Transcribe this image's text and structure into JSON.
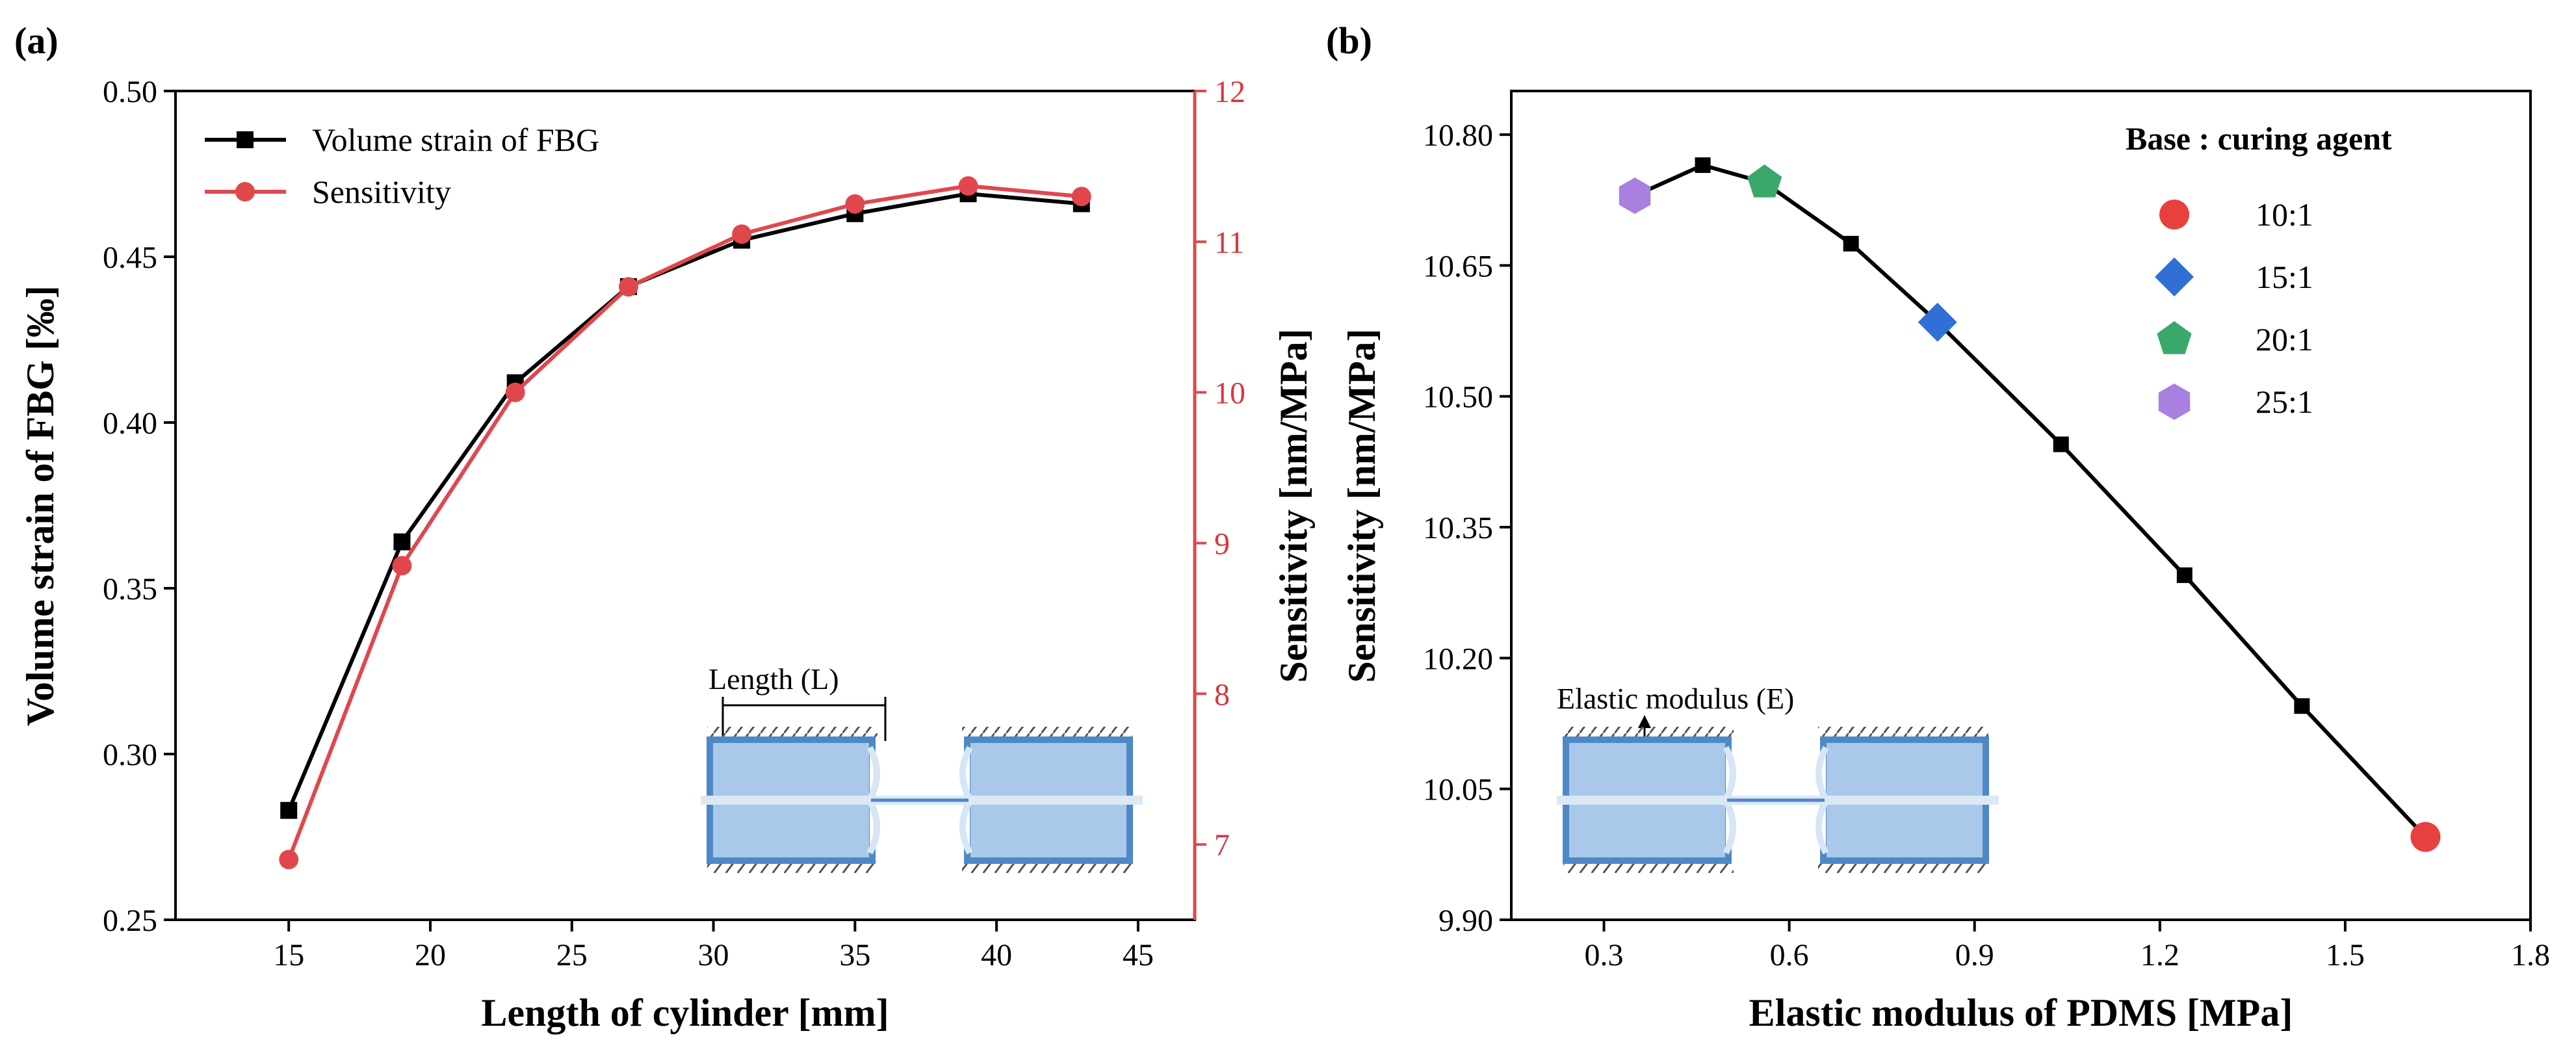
{
  "chart_data": [
    {
      "panel": "(a)",
      "type": "line",
      "x": [
        15,
        19,
        23,
        27,
        31,
        35,
        39,
        43
      ],
      "xlabel": "Length of cylinder [mm]",
      "ylabel": "Volume strain of FBG [‰]",
      "y2label": "Sensitivity [nm/MPa]",
      "xlim": [
        11,
        47
      ],
      "ylim": [
        0.25,
        0.5
      ],
      "y2lim": [
        6.5,
        12
      ],
      "xticks": [
        "15",
        "20",
        "25",
        "30",
        "35",
        "40",
        "45"
      ],
      "yticks": [
        "0.25",
        "0.30",
        "0.35",
        "0.40",
        "0.45",
        "0.50"
      ],
      "y2ticks": [
        "7",
        "8",
        "9",
        "10",
        "11",
        "12"
      ],
      "series": [
        {
          "name": "Volume strain of FBG",
          "axis": "left",
          "marker": "square",
          "color": "#000000",
          "values": [
            0.283,
            0.364,
            0.412,
            0.441,
            0.455,
            0.463,
            0.469,
            0.466
          ]
        },
        {
          "name": "Sensitivity",
          "axis": "right",
          "marker": "circle",
          "color": "#e0474c",
          "values": [
            6.9,
            8.85,
            10.0,
            10.7,
            11.05,
            11.25,
            11.37,
            11.3
          ]
        }
      ],
      "legend_position": "top-left",
      "grid": false,
      "inset_label": "Length (L)"
    },
    {
      "panel": "(b)",
      "type": "line",
      "x": [
        0.35,
        0.46,
        0.56,
        0.7,
        0.84,
        1.04,
        1.24,
        1.43,
        1.63
      ],
      "values": [
        10.73,
        10.765,
        10.745,
        10.675,
        10.585,
        10.445,
        10.295,
        10.145,
        9.995
      ],
      "markers": [
        "hexagon",
        "square",
        "pentagon",
        "square",
        "diamond",
        "square",
        "square",
        "square",
        "circle"
      ],
      "xlabel": "Elastic modulus of PDMS [MPa]",
      "ylabel": "Sensitivity [nm/MPa]",
      "xlim": [
        0.15,
        1.8
      ],
      "ylim": [
        9.9,
        10.85
      ],
      "xticks": [
        "0.3",
        "0.6",
        "0.9",
        "1.2",
        "1.5",
        "1.8"
      ],
      "yticks": [
        "9.90",
        "10.05",
        "10.20",
        "10.35",
        "10.50",
        "10.65",
        "10.80"
      ],
      "legend_title": "Base : curing agent",
      "legend": [
        {
          "label": "10:1",
          "marker": "circle",
          "color": "#e8403f"
        },
        {
          "label": "15:1",
          "marker": "diamond",
          "color": "#2f6fd6"
        },
        {
          "label": "20:1",
          "marker": "pentagon",
          "color": "#3aa86b"
        },
        {
          "label": "25:1",
          "marker": "hexagon",
          "color": "#a97fe0"
        }
      ],
      "legend_position": "top-right",
      "grid": false,
      "inset_label": "Elastic modulus (E)"
    }
  ]
}
